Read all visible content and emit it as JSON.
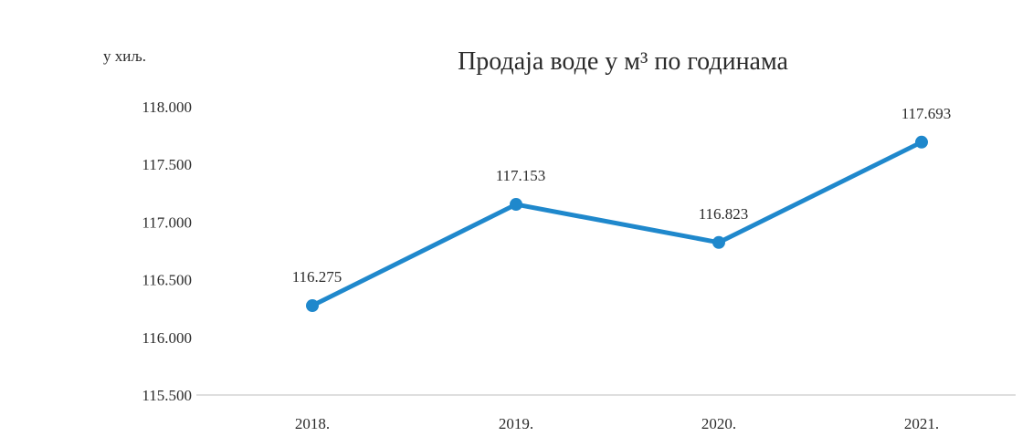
{
  "chart_data": {
    "type": "line",
    "title": "Продаја воде у м³ по годинама",
    "unit_label": "у хиљ.",
    "categories": [
      "2018.",
      "2019.",
      "2020.",
      "2021."
    ],
    "series": [
      {
        "values": [
          116275,
          117153,
          116823,
          117693
        ],
        "labels": [
          "116.275",
          "117.153",
          "116.823",
          "117.693"
        ]
      }
    ],
    "ylim": [
      115500,
      118000
    ],
    "y_ticks": [
      118000,
      117500,
      117000,
      116500,
      116000,
      115500
    ],
    "y_tick_labels": [
      "118.000",
      "117.500",
      "117.000",
      "116.500",
      "116.000",
      "115.500"
    ],
    "grid": false,
    "colors": {
      "line": "#1f88cc",
      "marker": "#1f88cc",
      "axis": "#d4d4d4",
      "text": "#2b2b2b"
    }
  }
}
